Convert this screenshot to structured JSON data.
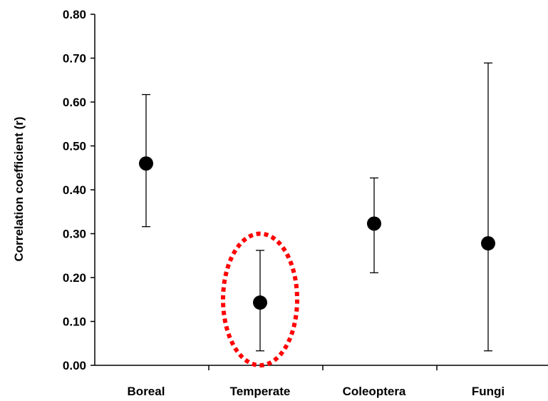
{
  "chart_data": {
    "type": "scatter",
    "categories": [
      "Boreal",
      "Temperate",
      "Coleoptera",
      "Fungi"
    ],
    "values": [
      0.46,
      0.143,
      0.323,
      0.278
    ],
    "error_low": [
      0.316,
      0.033,
      0.211,
      0.033
    ],
    "error_high": [
      0.617,
      0.262,
      0.427,
      0.689
    ],
    "ylabel": "Correlation coefficient (r)",
    "ylim": [
      0,
      0.8
    ],
    "yticks": [
      "0.00",
      "0.10",
      "0.20",
      "0.30",
      "0.40",
      "0.50",
      "0.60",
      "0.70",
      "0.80"
    ],
    "grid": false,
    "marker_color": "#000000",
    "highlight": {
      "category": "Temperate",
      "style": "dotted-ellipse",
      "color": "#ff0000"
    }
  }
}
